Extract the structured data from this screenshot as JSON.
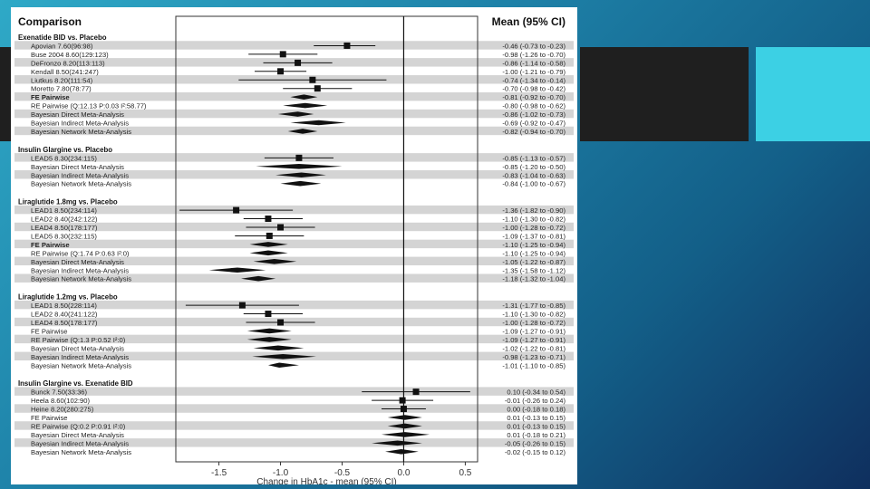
{
  "slide": {
    "accent_dark": "#1f1f1f",
    "accent_cyan": "#3cd0e4"
  },
  "chart_data": {
    "type": "forest",
    "title": "Comparison",
    "ci_header": "Mean (95% CI)",
    "xlabel": "Change in HbA1c - mean (95% CI)",
    "xlim": [
      -1.85,
      0.6
    ],
    "xticks": [
      -1.5,
      -1.0,
      -0.5,
      0.0,
      0.5
    ],
    "xtick_labels": [
      "-1.5",
      "-1.0",
      "-0.5",
      "0.0",
      "0.5"
    ],
    "reference_line": 0,
    "shaded_rows": true,
    "groups": [
      {
        "title": "Exenatide BID vs. Placebo",
        "rows": [
          {
            "label": "Apovian 7.60(96:98)",
            "mean": -0.46,
            "lo": -0.73,
            "hi": -0.23,
            "ci": "-0.46 (-0.73 to -0.23)",
            "kind": "study",
            "bold": false
          },
          {
            "label": "Buse 2004 8.60(129:123)",
            "mean": -0.98,
            "lo": -1.26,
            "hi": -0.7,
            "ci": "-0.98 (-1.26 to -0.70)",
            "kind": "study",
            "bold": false
          },
          {
            "label": "DeFronzo 8.20(113:113)",
            "mean": -0.86,
            "lo": -1.14,
            "hi": -0.58,
            "ci": "-0.86 (-1.14 to -0.58)",
            "kind": "study",
            "bold": false
          },
          {
            "label": "Kendall 8.50(241:247)",
            "mean": -1.0,
            "lo": -1.21,
            "hi": -0.79,
            "ci": "-1.00 (-1.21 to -0.79)",
            "kind": "study",
            "bold": false
          },
          {
            "label": "Liutkus 8.20(111:54)",
            "mean": -0.74,
            "lo": -1.34,
            "hi": -0.14,
            "ci": "-0.74 (-1.34 to -0.14)",
            "kind": "study",
            "bold": false
          },
          {
            "label": "Moretto 7.80(78:77)",
            "mean": -0.7,
            "lo": -0.98,
            "hi": -0.42,
            "ci": "-0.70 (-0.98 to -0.42)",
            "kind": "study",
            "bold": false
          },
          {
            "label": "FE Pairwise",
            "mean": -0.81,
            "lo": -0.92,
            "hi": -0.7,
            "ci": "-0.81 (-0.92 to -0.70)",
            "kind": "pooled",
            "bold": true
          },
          {
            "label": "RE Pairwise (Q:12.13 P:0.03 I²:58.77)",
            "mean": -0.8,
            "lo": -0.98,
            "hi": -0.62,
            "ci": "-0.80 (-0.98 to -0.62)",
            "kind": "pooled",
            "bold": false
          },
          {
            "label": "Bayesian Direct Meta-Analysis",
            "mean": -0.86,
            "lo": -1.02,
            "hi": -0.73,
            "ci": "-0.86 (-1.02 to -0.73)",
            "kind": "pooled",
            "bold": false
          },
          {
            "label": "Bayesian Indirect Meta-Analysis",
            "mean": -0.69,
            "lo": -0.92,
            "hi": -0.47,
            "ci": "-0.69 (-0.92 to -0.47)",
            "kind": "pooled",
            "bold": false
          },
          {
            "label": "Bayesian Network Meta-Analysis",
            "mean": -0.82,
            "lo": -0.94,
            "hi": -0.7,
            "ci": "-0.82 (-0.94 to -0.70)",
            "kind": "pooled",
            "bold": false
          }
        ]
      },
      {
        "title": "Insulin Glargine vs. Placebo",
        "rows": [
          {
            "label": "LEAD5 8.30(234:115)",
            "mean": -0.85,
            "lo": -1.13,
            "hi": -0.57,
            "ci": "-0.85 (-1.13 to -0.57)",
            "kind": "study",
            "bold": false
          },
          {
            "label": "Bayesian Direct Meta-Analysis",
            "mean": -0.85,
            "lo": -1.2,
            "hi": -0.5,
            "ci": "-0.85 (-1.20 to -0.50)",
            "kind": "pooled",
            "bold": false
          },
          {
            "label": "Bayesian Indirect Meta-Analysis",
            "mean": -0.83,
            "lo": -1.04,
            "hi": -0.63,
            "ci": "-0.83 (-1.04 to -0.63)",
            "kind": "pooled",
            "bold": false
          },
          {
            "label": "Bayesian Network Meta-Analysis",
            "mean": -0.84,
            "lo": -1.0,
            "hi": -0.67,
            "ci": "-0.84 (-1.00 to -0.67)",
            "kind": "pooled",
            "bold": false
          }
        ]
      },
      {
        "title": "Liraglutide 1.8mg vs. Placebo",
        "rows": [
          {
            "label": "LEAD1 8.50(234:114)",
            "mean": -1.36,
            "lo": -1.82,
            "hi": -0.9,
            "ci": "-1.36 (-1.82 to -0.90)",
            "kind": "study",
            "bold": false
          },
          {
            "label": "LEAD2 8.40(242:122)",
            "mean": -1.1,
            "lo": -1.3,
            "hi": -0.82,
            "ci": "-1.10 (-1.30 to -0.82)",
            "kind": "study",
            "bold": false
          },
          {
            "label": "LEAD4 8.50(178:177)",
            "mean": -1.0,
            "lo": -1.28,
            "hi": -0.72,
            "ci": "-1.00 (-1.28 to -0.72)",
            "kind": "study",
            "bold": false
          },
          {
            "label": "LEAD5 8.30(232:115)",
            "mean": -1.09,
            "lo": -1.37,
            "hi": -0.81,
            "ci": "-1.09 (-1.37 to -0.81)",
            "kind": "study",
            "bold": false
          },
          {
            "label": "FE Pairwise",
            "mean": -1.1,
            "lo": -1.25,
            "hi": -0.94,
            "ci": "-1.10 (-1.25 to -0.94)",
            "kind": "pooled",
            "bold": true
          },
          {
            "label": "RE Pairwise (Q:1.74 P:0.63 I²:0)",
            "mean": -1.1,
            "lo": -1.25,
            "hi": -0.94,
            "ci": "-1.10 (-1.25 to -0.94)",
            "kind": "pooled",
            "bold": false
          },
          {
            "label": "Bayesian Direct Meta-Analysis",
            "mean": -1.05,
            "lo": -1.22,
            "hi": -0.87,
            "ci": "-1.05 (-1.22 to -0.87)",
            "kind": "pooled",
            "bold": false
          },
          {
            "label": "Bayesian Indirect Meta-Analysis",
            "mean": -1.35,
            "lo": -1.58,
            "hi": -1.12,
            "ci": "-1.35 (-1.58 to -1.12)",
            "kind": "pooled",
            "bold": false
          },
          {
            "label": "Bayesian Network Meta-Analysis",
            "mean": -1.18,
            "lo": -1.32,
            "hi": -1.04,
            "ci": "-1.18 (-1.32 to -1.04)",
            "kind": "pooled",
            "bold": false
          }
        ]
      },
      {
        "title": "Liraglutide 1.2mg vs. Placebo",
        "rows": [
          {
            "label": "LEAD1 8.50(228:114)",
            "mean": -1.31,
            "lo": -1.77,
            "hi": -0.85,
            "ci": "-1.31 (-1.77 to -0.85)",
            "kind": "study",
            "bold": false
          },
          {
            "label": "LEAD2 8.40(241:122)",
            "mean": -1.1,
            "lo": -1.3,
            "hi": -0.82,
            "ci": "-1.10 (-1.30 to -0.82)",
            "kind": "study",
            "bold": false
          },
          {
            "label": "LEAD4 8.50(178:177)",
            "mean": -1.0,
            "lo": -1.28,
            "hi": -0.72,
            "ci": "-1.00 (-1.28 to -0.72)",
            "kind": "study",
            "bold": false
          },
          {
            "label": "FE Pairwise",
            "mean": -1.09,
            "lo": -1.27,
            "hi": -0.91,
            "ci": "-1.09 (-1.27 to -0.91)",
            "kind": "pooled",
            "bold": false
          },
          {
            "label": "RE Pairwise (Q:1.3 P:0.52 I²:0)",
            "mean": -1.09,
            "lo": -1.27,
            "hi": -0.91,
            "ci": "-1.09 (-1.27 to -0.91)",
            "kind": "pooled",
            "bold": false
          },
          {
            "label": "Bayesian Direct Meta-Analysis",
            "mean": -1.02,
            "lo": -1.22,
            "hi": -0.81,
            "ci": "-1.02 (-1.22 to -0.81)",
            "kind": "pooled",
            "bold": false
          },
          {
            "label": "Bayesian Indirect Meta-Analysis",
            "mean": -0.98,
            "lo": -1.23,
            "hi": -0.71,
            "ci": "-0.98 (-1.23 to -0.71)",
            "kind": "pooled",
            "bold": false
          },
          {
            "label": "Bayesian Network Meta-Analysis",
            "mean": -1.01,
            "lo": -1.1,
            "hi": -0.85,
            "ci": "-1.01 (-1.10 to -0.85)",
            "kind": "pooled",
            "bold": false
          }
        ]
      },
      {
        "title": "Insulin Glargine vs. Exenatide BID",
        "rows": [
          {
            "label": "Bunck 7.50(33:36)",
            "mean": 0.1,
            "lo": -0.34,
            "hi": 0.54,
            "ci": "0.10 (-0.34 to 0.54)",
            "kind": "study",
            "bold": false
          },
          {
            "label": "Heela 8.60(102:90)",
            "mean": -0.01,
            "lo": -0.26,
            "hi": 0.24,
            "ci": "-0.01 (-0.26 to 0.24)",
            "kind": "study",
            "bold": false
          },
          {
            "label": "Heine 8.20(280:275)",
            "mean": 0.0,
            "lo": -0.18,
            "hi": 0.18,
            "ci": "0.00 (-0.18 to 0.18)",
            "kind": "study",
            "bold": false
          },
          {
            "label": "FE Pairwise",
            "mean": 0.01,
            "lo": -0.13,
            "hi": 0.15,
            "ci": "0.01 (-0.13 to 0.15)",
            "kind": "pooled",
            "bold": false
          },
          {
            "label": "RE Pairwise (Q:0.2 P:0.91 I²:0)",
            "mean": 0.01,
            "lo": -0.13,
            "hi": 0.15,
            "ci": "0.01 (-0.13 to 0.15)",
            "kind": "pooled",
            "bold": false
          },
          {
            "label": "Bayesian Direct Meta-Analysis",
            "mean": 0.01,
            "lo": -0.18,
            "hi": 0.21,
            "ci": "0.01 (-0.18 to 0.21)",
            "kind": "pooled",
            "bold": false
          },
          {
            "label": "Bayesian Indirect Meta-Analysis",
            "mean": -0.05,
            "lo": -0.26,
            "hi": 0.15,
            "ci": "-0.05 (-0.26 to 0.15)",
            "kind": "pooled",
            "bold": false
          },
          {
            "label": "Bayesian Network Meta-Analysis",
            "mean": -0.02,
            "lo": -0.15,
            "hi": 0.12,
            "ci": "-0.02 (-0.15 to 0.12)",
            "kind": "pooled",
            "bold": false
          }
        ]
      }
    ]
  }
}
